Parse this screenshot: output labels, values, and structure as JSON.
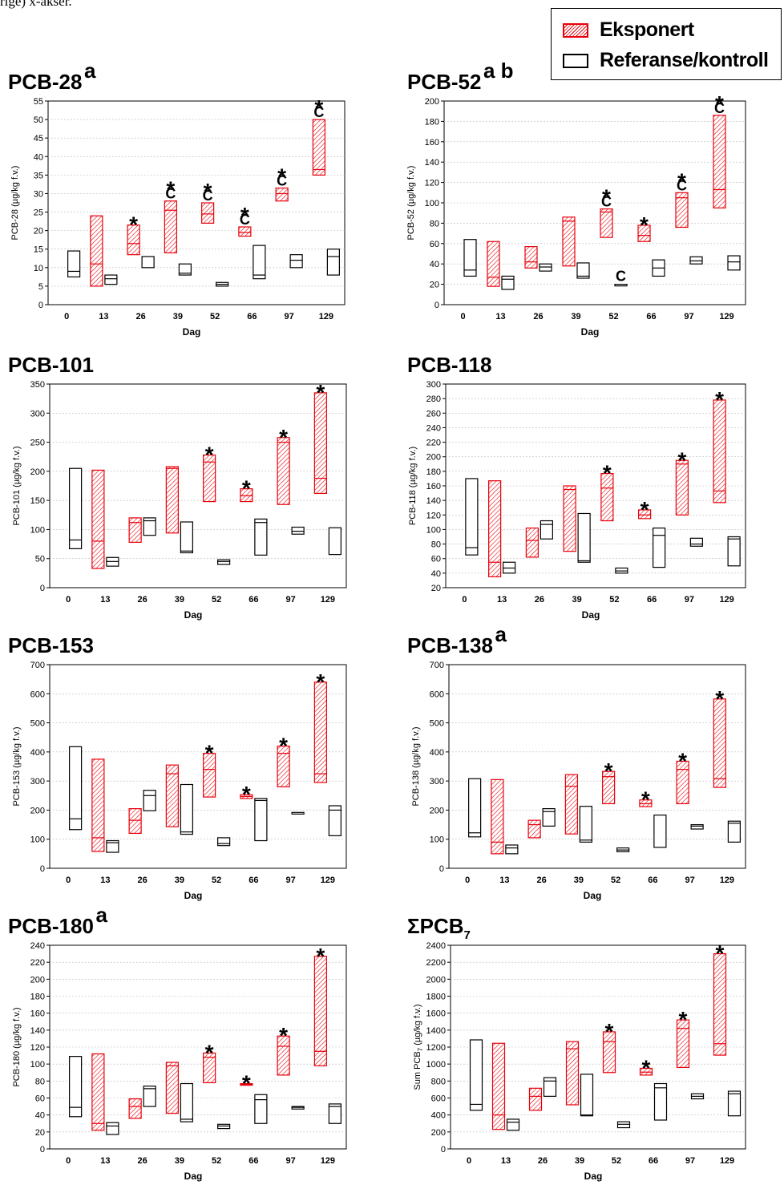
{
  "top_text": "rige) x-akser.",
  "legend": {
    "exposed": "Eksponert",
    "reference": "Referanse/kontroll"
  },
  "colors": {
    "exposed": "#e8000a",
    "reference": "#000000",
    "grid": "#bbbbbb"
  },
  "chart_data": [
    {
      "type": "box",
      "title": "PCB-28",
      "title_note": "a",
      "xlabel": "Dag",
      "ylabel": "PCB-28 (µg/kg f.v.)",
      "categories": [
        "0",
        "13",
        "26",
        "39",
        "52",
        "66",
        "97",
        "129"
      ],
      "ylim": [
        0,
        55
      ],
      "yticks": [
        0,
        5,
        10,
        15,
        20,
        25,
        30,
        35,
        40,
        45,
        50,
        55
      ],
      "exposed": [
        null,
        [
          5,
          24,
          11
        ],
        [
          13.5,
          21.5,
          16.5
        ],
        [
          14,
          28,
          25.5
        ],
        [
          22,
          27.5,
          24.5
        ],
        [
          18.5,
          21,
          19.5
        ],
        [
          28,
          31.5,
          30
        ],
        [
          35,
          50,
          36.5
        ]
      ],
      "reference": [
        [
          7.5,
          14.5,
          9
        ],
        [
          5.5,
          8,
          7
        ],
        [
          10,
          13
        ],
        [
          8,
          11,
          8.5
        ],
        [
          5,
          6,
          5.5
        ],
        [
          7,
          16,
          8
        ],
        [
          10,
          13.5,
          12
        ],
        [
          8,
          15,
          13
        ]
      ],
      "annotations": [
        "",
        "",
        "*",
        "*C",
        "*C",
        "*C",
        "*C",
        "*C"
      ]
    },
    {
      "type": "box",
      "title": "PCB-52",
      "title_note": "a b",
      "xlabel": "Dag",
      "ylabel": "PCB-52 (µg/kg f.v.)",
      "categories": [
        "0",
        "13",
        "26",
        "39",
        "52",
        "66",
        "97",
        "129"
      ],
      "ylim": [
        0,
        200
      ],
      "yticks": [
        0,
        20,
        40,
        60,
        80,
        100,
        120,
        140,
        160,
        180,
        200
      ],
      "exposed": [
        null,
        [
          18,
          62,
          27
        ],
        [
          36,
          57,
          42
        ],
        [
          38,
          86,
          82
        ],
        [
          66,
          94,
          91
        ],
        [
          62,
          78,
          68
        ],
        [
          76,
          110,
          105
        ],
        [
          95,
          186,
          113
        ]
      ],
      "reference": [
        [
          28,
          64,
          34
        ],
        [
          15,
          28,
          25
        ],
        [
          33,
          40,
          37
        ],
        [
          26,
          41,
          28
        ],
        [
          20,
          20
        ],
        [
          28,
          44,
          36
        ],
        [
          40,
          47,
          43
        ],
        [
          34,
          48,
          42
        ]
      ],
      "annotations": [
        "",
        "",
        "",
        "",
        "*C",
        "*",
        "*C",
        "*C"
      ],
      "ref_annotations": [
        "",
        "",
        "",
        "",
        "C",
        "",
        "",
        ""
      ]
    },
    {
      "type": "box",
      "title": "PCB-101",
      "xlabel": "Dag",
      "ylabel": "PCB-101 (µg/kg f.v.)",
      "categories": [
        "0",
        "13",
        "26",
        "39",
        "52",
        "66",
        "97",
        "129"
      ],
      "ylim": [
        0,
        350
      ],
      "yticks": [
        0,
        50,
        100,
        150,
        200,
        250,
        300,
        350
      ],
      "exposed": [
        null,
        [
          33,
          202,
          80
        ],
        [
          78,
          120,
          112
        ],
        [
          94,
          208,
          205
        ],
        [
          148,
          228,
          216
        ],
        [
          148,
          170,
          158
        ],
        [
          143,
          258,
          250
        ],
        [
          162,
          335,
          188
        ]
      ],
      "reference": [
        [
          67,
          205,
          82
        ],
        [
          37,
          52,
          45
        ],
        [
          90,
          120,
          115
        ],
        [
          60,
          113,
          63
        ],
        [
          40,
          48,
          45
        ],
        [
          56,
          118,
          112
        ],
        [
          92,
          104,
          97
        ],
        [
          57,
          103
        ]
      ],
      "annotations": [
        "",
        "",
        "",
        "",
        "*",
        "*",
        "*",
        "*"
      ]
    },
    {
      "type": "box",
      "title": "PCB-118",
      "xlabel": "Dag",
      "ylabel": "PCB-118 (µg/kg f.v.)",
      "categories": [
        "0",
        "13",
        "26",
        "39",
        "52",
        "66",
        "97",
        "129"
      ],
      "ylim": [
        20,
        300
      ],
      "yticks": [
        20,
        40,
        60,
        80,
        100,
        120,
        140,
        160,
        180,
        200,
        220,
        240,
        260,
        280,
        300
      ],
      "exposed": [
        null,
        [
          35,
          167,
          55
        ],
        [
          62,
          102,
          85
        ],
        [
          70,
          160,
          155
        ],
        [
          112,
          177,
          157
        ],
        [
          115,
          127,
          120
        ],
        [
          120,
          195,
          190
        ],
        [
          137,
          278,
          153
        ]
      ],
      "reference": [
        [
          65,
          170,
          75
        ],
        [
          40,
          55,
          47
        ],
        [
          87,
          112,
          107
        ],
        [
          55,
          122,
          57
        ],
        [
          40,
          47,
          43
        ],
        [
          48,
          102,
          92
        ],
        [
          77,
          88,
          80
        ],
        [
          50,
          90,
          87
        ]
      ],
      "annotations": [
        "",
        "",
        "",
        "",
        "*",
        "*",
        "*",
        "*"
      ]
    },
    {
      "type": "box",
      "title": "PCB-153",
      "xlabel": "Dag",
      "ylabel": "PCB-153 (µg/kg f.v.)",
      "categories": [
        "0",
        "13",
        "26",
        "39",
        "52",
        "66",
        "97",
        "129"
      ],
      "ylim": [
        0,
        700
      ],
      "yticks": [
        0,
        100,
        200,
        300,
        400,
        500,
        600,
        700
      ],
      "exposed": [
        null,
        [
          58,
          375,
          105
        ],
        [
          120,
          205,
          165
        ],
        [
          143,
          355,
          325
        ],
        [
          245,
          395,
          340
        ],
        [
          240,
          253,
          247
        ],
        [
          280,
          420,
          395
        ],
        [
          295,
          640,
          325
        ]
      ],
      "reference": [
        [
          133,
          418,
          170
        ],
        [
          55,
          95,
          88
        ],
        [
          198,
          268,
          250
        ],
        [
          117,
          288,
          125
        ],
        [
          78,
          105,
          85
        ],
        [
          95,
          240,
          233
        ],
        [
          188,
          192
        ],
        [
          112,
          215,
          200
        ]
      ],
      "annotations": [
        "",
        "",
        "",
        "",
        "*",
        "*",
        "*",
        "*"
      ]
    },
    {
      "type": "box",
      "title": "PCB-138",
      "title_note": "a",
      "xlabel": "Dag",
      "ylabel": "PCB-138 (µg/kg f.v.)",
      "categories": [
        "0",
        "13",
        "26",
        "39",
        "52",
        "66",
        "97",
        "129"
      ],
      "ylim": [
        0,
        700
      ],
      "yticks": [
        0,
        100,
        200,
        300,
        400,
        500,
        600,
        700
      ],
      "exposed": [
        null,
        [
          50,
          305,
          90
        ],
        [
          105,
          165,
          150
        ],
        [
          118,
          322,
          282
        ],
        [
          222,
          333,
          315
        ],
        [
          212,
          235,
          222
        ],
        [
          222,
          368,
          340
        ],
        [
          278,
          582,
          308
        ]
      ],
      "reference": [
        [
          108,
          308,
          122
        ],
        [
          50,
          80,
          70
        ],
        [
          145,
          205,
          195
        ],
        [
          90,
          213,
          97
        ],
        [
          57,
          70,
          63
        ],
        [
          72,
          183
        ],
        [
          135,
          150,
          145
        ],
        [
          90,
          162,
          155
        ]
      ],
      "annotations": [
        "",
        "",
        "",
        "",
        "*",
        "*",
        "*",
        "*"
      ]
    },
    {
      "type": "box",
      "title": "PCB-180",
      "title_note": "a",
      "xlabel": "Dag",
      "ylabel": "PCB-180 (µg/kg f.v.)",
      "categories": [
        "0",
        "13",
        "26",
        "39",
        "52",
        "66",
        "97",
        "129"
      ],
      "ylim": [
        0,
        240
      ],
      "yticks": [
        0,
        20,
        40,
        60,
        80,
        100,
        120,
        140,
        160,
        180,
        200,
        220,
        240
      ],
      "exposed": [
        null,
        [
          22,
          112,
          30
        ],
        [
          36,
          59,
          50
        ],
        [
          42,
          102,
          98
        ],
        [
          78,
          113,
          108
        ],
        [
          75,
          77,
          76
        ],
        [
          87,
          133,
          121
        ],
        [
          98,
          227,
          115
        ]
      ],
      "reference": [
        [
          38,
          109,
          49
        ],
        [
          17,
          31,
          27
        ],
        [
          50,
          74,
          71
        ],
        [
          32,
          77,
          35
        ],
        [
          24,
          29,
          27
        ],
        [
          30,
          64,
          58
        ],
        [
          47,
          50,
          49
        ],
        [
          30,
          53,
          50
        ]
      ],
      "annotations": [
        "",
        "",
        "",
        "",
        "*",
        "*",
        "*",
        "*"
      ]
    },
    {
      "type": "box",
      "title": "ΣPCB",
      "title_sub": "7",
      "xlabel": "Dag",
      "ylabel": "Sum PCB",
      "ylabel_sub": "7",
      "ylabel_rest": " (µg/kg f.v.)",
      "categories": [
        "0",
        "13",
        "26",
        "39",
        "52",
        "66",
        "97",
        "129"
      ],
      "ylim": [
        0,
        2400
      ],
      "yticks": [
        0,
        200,
        400,
        600,
        800,
        1000,
        1200,
        1400,
        1600,
        1800,
        2000,
        2200,
        2400
      ],
      "exposed": [
        null,
        [
          230,
          1245,
          400
        ],
        [
          455,
          715,
          620
        ],
        [
          520,
          1265,
          1180
        ],
        [
          900,
          1380,
          1265
        ],
        [
          870,
          950,
          905
        ],
        [
          960,
          1520,
          1420
        ],
        [
          1105,
          2300,
          1240
        ]
      ],
      "reference": [
        [
          455,
          1285,
          525
        ],
        [
          220,
          350,
          315
        ],
        [
          620,
          840,
          800
        ],
        [
          390,
          880,
          400
        ],
        [
          250,
          320,
          290
        ],
        [
          340,
          770,
          720
        ],
        [
          590,
          650,
          620
        ],
        [
          390,
          680,
          650
        ]
      ],
      "annotations": [
        "",
        "",
        "",
        "",
        "*",
        "*",
        "*",
        "*"
      ]
    }
  ]
}
